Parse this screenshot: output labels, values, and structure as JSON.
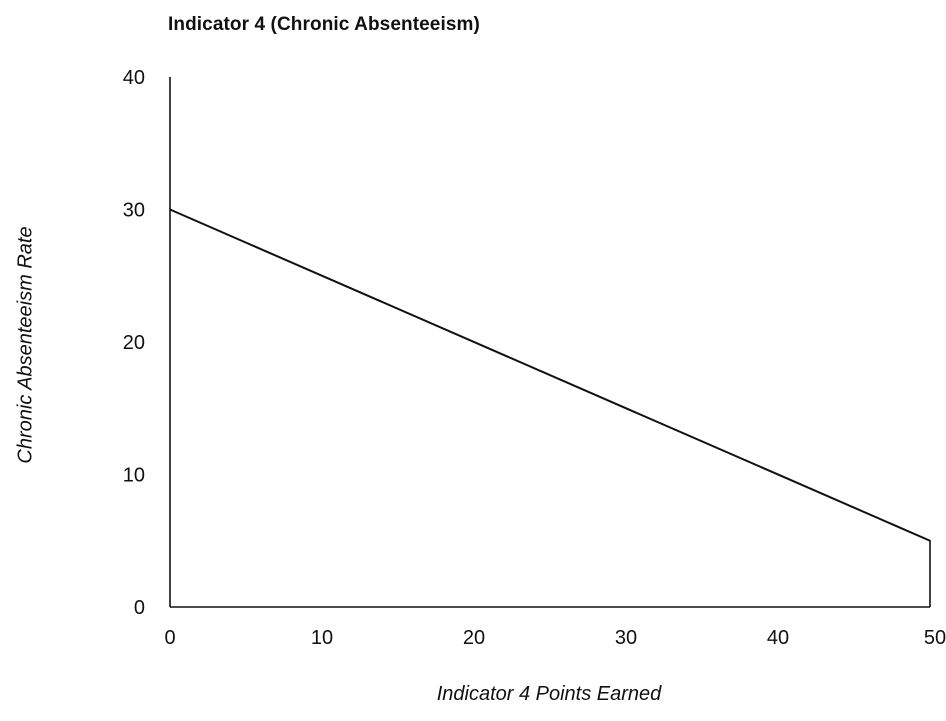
{
  "chart_data": {
    "type": "line",
    "title": "Indicator 4 (Chronic Absenteeism)",
    "xlabel": "Indicator 4 Points Earned",
    "ylabel": "Chronic Absenteeism Rate",
    "xlim": [
      0,
      50
    ],
    "ylim": [
      0,
      40
    ],
    "x_ticks": [
      "0",
      "10",
      "20",
      "30",
      "40",
      "50"
    ],
    "y_ticks": [
      "0",
      "10",
      "20",
      "30",
      "40"
    ],
    "grid": false,
    "series": [
      {
        "x": [
          0,
          50
        ],
        "y": [
          30,
          5
        ],
        "color": "#111111"
      }
    ]
  }
}
